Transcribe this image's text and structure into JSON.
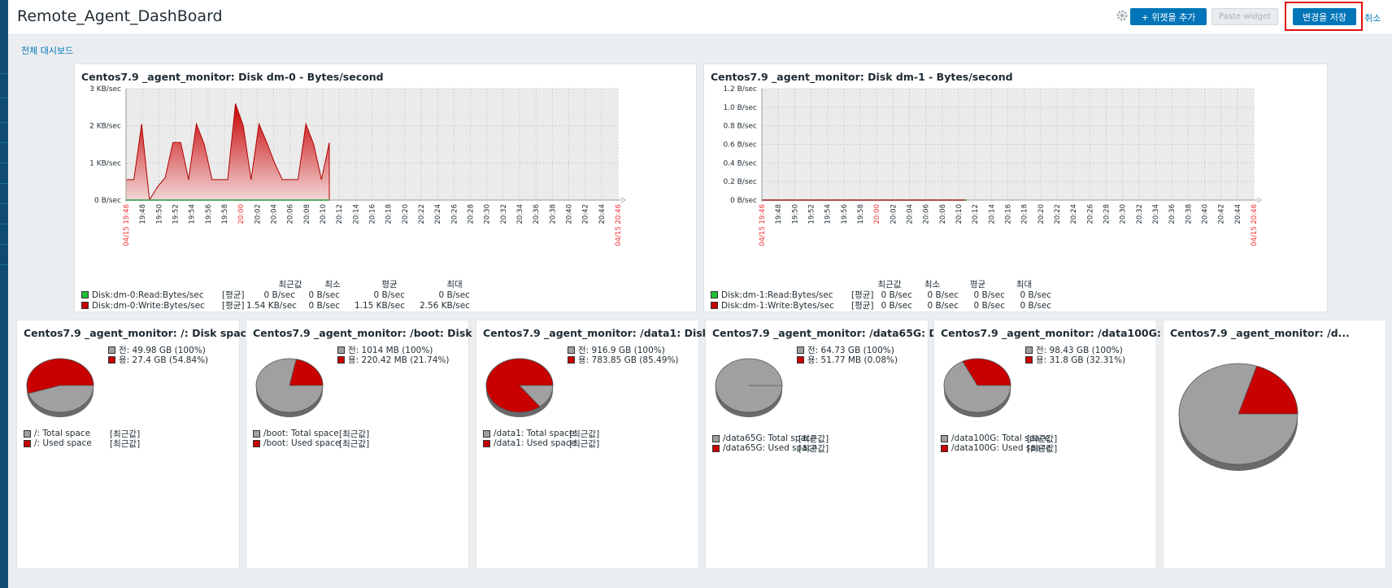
{
  "header": {
    "title": "Remote_Agent_DashBoard",
    "add_widget": "+ 위젯을 추가",
    "paste_widget": "Paste widget",
    "save_changes": "변경을 저장",
    "cancel": "취소"
  },
  "breadcrumb": "전체 대시보드",
  "colors": {
    "accent": "#0275b8",
    "red": "#c80000",
    "green": "#1fbf35",
    "gray": "#a0a0a0"
  },
  "graphs": [
    {
      "title": "Centos7.9 _agent_monitor: Disk dm-0 - Bytes/second",
      "y_ticks": [
        "3 KB/sec",
        "2 KB/sec",
        "1 KB/sec",
        "0 B/sec"
      ],
      "x_start": "04/15 19:46",
      "x_end": "04/15 20:46",
      "x_ticks": [
        "19:48",
        "19:50",
        "19:52",
        "19:54",
        "19:56",
        "19:58",
        "20:00",
        "20:02",
        "20:04",
        "20:06",
        "20:08",
        "20:10",
        "20:12",
        "20:14",
        "20:16",
        "20:18",
        "20:20",
        "20:22",
        "20:24",
        "20:26",
        "20:28",
        "20:30",
        "20:32",
        "20:34",
        "20:36",
        "20:38",
        "20:40",
        "20:42",
        "20:44"
      ],
      "legend_headers": [
        "최근값",
        "최소",
        "평균",
        "최대"
      ],
      "legend": [
        {
          "name": "Disk:dm-0:Read:Bytes/sec",
          "func": "[평균]",
          "last": "0 B/sec",
          "min": "0 B/sec",
          "avg": "0 B/sec",
          "max": "0 B/sec",
          "color": "green"
        },
        {
          "name": "Disk:dm-0:Write:Bytes/sec",
          "func": "[평균]",
          "last": "1.54 KB/sec",
          "min": "0 B/sec",
          "avg": "1.15 KB/sec",
          "max": "2.56 KB/sec",
          "color": "red"
        }
      ],
      "write_series_kb": [
        0.55,
        0.55,
        2.05,
        0,
        0.35,
        0.6,
        1.55,
        1.55,
        0.55,
        2.05,
        1.5,
        0.55,
        0.55,
        0.55,
        2.6,
        2.0,
        0.55,
        2.05,
        1.55,
        1.0,
        0.55,
        0.55,
        0.55,
        2.05,
        1.5,
        0.55,
        1.55
      ]
    },
    {
      "title": "Centos7.9 _agent_monitor: Disk dm-1 - Bytes/second",
      "y_ticks": [
        "1.2 B/sec",
        "1.0 B/sec",
        "0.8 B/sec",
        "0.6 B/sec",
        "0.4 B/sec",
        "0.2 B/sec",
        "0 B/sec"
      ],
      "x_start": "04/15 19:46",
      "x_end": "04/15 20:46",
      "x_ticks": [
        "19:48",
        "19:50",
        "19:52",
        "19:54",
        "19:56",
        "19:58",
        "20:00",
        "20:02",
        "20:04",
        "20:06",
        "20:08",
        "20:10",
        "20:12",
        "20:14",
        "20:16",
        "20:18",
        "20:20",
        "20:22",
        "20:24",
        "20:26",
        "20:28",
        "20:30",
        "20:32",
        "20:34",
        "20:36",
        "20:38",
        "20:40",
        "20:42",
        "20:44"
      ],
      "legend_headers": [
        "최근값",
        "최소",
        "평균",
        "최대"
      ],
      "legend": [
        {
          "name": "Disk:dm-1:Read:Bytes/sec",
          "func": "[평균]",
          "last": "0 B/sec",
          "min": "0 B/sec",
          "avg": "0 B/sec",
          "max": "0 B/sec",
          "color": "green"
        },
        {
          "name": "Disk:dm-1:Write:Bytes/sec",
          "func": "[평균]",
          "last": "0 B/sec",
          "min": "0 B/sec",
          "avg": "0 B/sec",
          "max": "0 B/sec",
          "color": "red"
        }
      ]
    }
  ],
  "pies": [
    {
      "title": "Centos7.9 _agent_monitor: /: Disk space ...",
      "total": "전: 49.98 GB (100%)",
      "used": "용: 27.4 GB (54.84%)",
      "used_pct": 54.84,
      "legend_total": "/: Total space",
      "legend_used": "/: Used space",
      "func": "[최근값]"
    },
    {
      "title": "Centos7.9 _agent_monitor: /boot: Disk sp...",
      "total": "전: 1014 MB (100%)",
      "used": "용: 220.42 MB (21.74%)",
      "used_pct": 21.74,
      "legend_total": "/boot: Total space",
      "legend_used": "/boot: Used space",
      "func": "[최근값]"
    },
    {
      "title": "Centos7.9 _agent_monitor: /data1: Disk s...",
      "total": "전: 916.9 GB (100%)",
      "used": "용: 783.85 GB (85.49%)",
      "used_pct": 85.49,
      "legend_total": "/data1: Total space",
      "legend_used": "/data1: Used space",
      "func": "[최근값]"
    },
    {
      "title": "Centos7.9 _agent_monitor: /data65G: Dis...",
      "total": "전: 64.73 GB (100%)",
      "used": "용: 51.77 MB (0.08%)",
      "used_pct": 0.08,
      "legend_total": "/data65G: Total space",
      "legend_used": "/data65G: Used space",
      "func": "[최근값]"
    },
    {
      "title": "Centos7.9 _agent_monitor: /data100G: Di...",
      "total": "전: 98.43 GB (100%)",
      "used": "용: 31.8 GB (32.31%)",
      "used_pct": 32.31,
      "legend_total": "/data100G: Total space",
      "legend_used": "/data100G: Used space",
      "func": "[최근값]"
    },
    {
      "title": "Centos7.9 _agent_monitor: /d...",
      "used_pct": 20
    }
  ]
}
